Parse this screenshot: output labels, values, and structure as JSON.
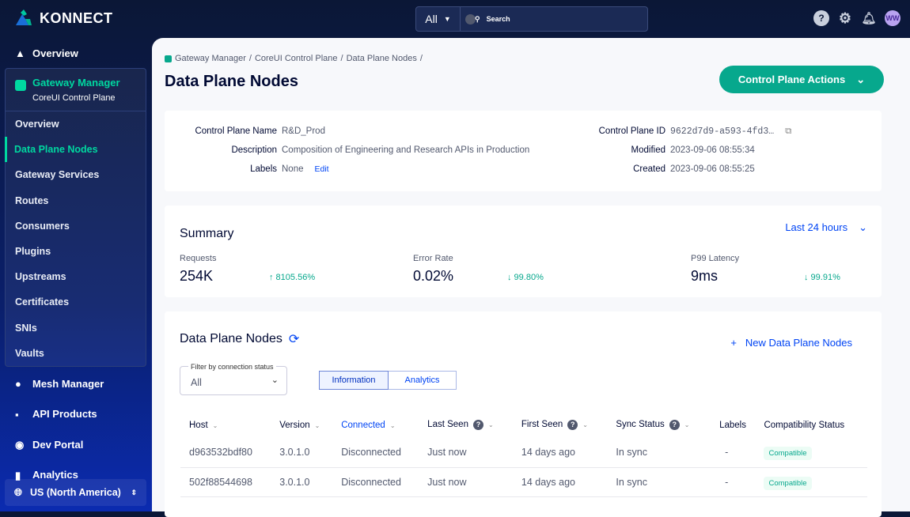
{
  "app": {
    "brand": "KONNECT"
  },
  "search": {
    "scope": "All",
    "placeholder": "Search"
  },
  "topbar": {
    "avatar": "WW"
  },
  "sidebar": {
    "top": [
      {
        "label": "Overview"
      }
    ],
    "gateway": {
      "title": "Gateway Manager",
      "subtitle": "CoreUI Control Plane",
      "items": [
        "Overview",
        "Data Plane Nodes",
        "Gateway Services",
        "Routes",
        "Consumers",
        "Plugins",
        "Upstreams",
        "Certificates",
        "SNIs",
        "Vaults"
      ],
      "active": "Data Plane Nodes"
    },
    "bottom": [
      "Mesh Manager",
      "API Products",
      "Dev Portal",
      "Analytics"
    ],
    "region": "US (North America)"
  },
  "breadcrumb": [
    "Gateway Manager",
    "CoreUI Control Plane",
    "Data Plane Nodes"
  ],
  "page": {
    "title": "Data Plane Nodes",
    "actions": "Control Plane Actions"
  },
  "details": {
    "name_k": "Control Plane Name",
    "name": "R&D_Prod",
    "desc_k": "Description",
    "desc": "Composition of Engineering and Research APIs in Production",
    "labels_k": "Labels",
    "labels": "None",
    "edit": "Edit",
    "id_k": "Control Plane ID",
    "id": "9622d7d9-a593-4fd3…",
    "mod_k": "Modified",
    "mod": "2023-09-06 08:55:34",
    "created_k": "Created",
    "created": "2023-09-06 08:55:25"
  },
  "summary": {
    "title": "Summary",
    "range": "Last 24 hours",
    "metrics": [
      {
        "label": "Requests",
        "value": "254K",
        "delta": "↑ 8105.56%"
      },
      {
        "label": "Error Rate",
        "value": "0.02%",
        "delta": "↓ 99.80%"
      },
      {
        "label": "P99 Latency",
        "value": "9ms",
        "delta": "↓ 99.91%"
      }
    ]
  },
  "nodes": {
    "title": "Data Plane Nodes",
    "new": "New Data Plane Nodes",
    "filter_label": "Filter by connection status",
    "filter_value": "All",
    "tabs": [
      "Information",
      "Analytics"
    ],
    "columns": [
      "Host",
      "Version",
      "Connected",
      "Last Seen",
      "First Seen",
      "Sync Status",
      "Labels",
      "Compatibility Status"
    ],
    "rows": [
      [
        "d963532bdf80",
        "3.0.1.0",
        "Disconnected",
        "Just now",
        "14 days ago",
        "In sync",
        "-",
        "Compatible"
      ],
      [
        "502f88544698",
        "3.0.1.0",
        "Disconnected",
        "Just now",
        "14 days ago",
        "In sync",
        "-",
        "Compatible"
      ]
    ]
  },
  "colors": {
    "accent": "#00d8a0",
    "primary": "#07a88d",
    "link": "#0044f4"
  }
}
